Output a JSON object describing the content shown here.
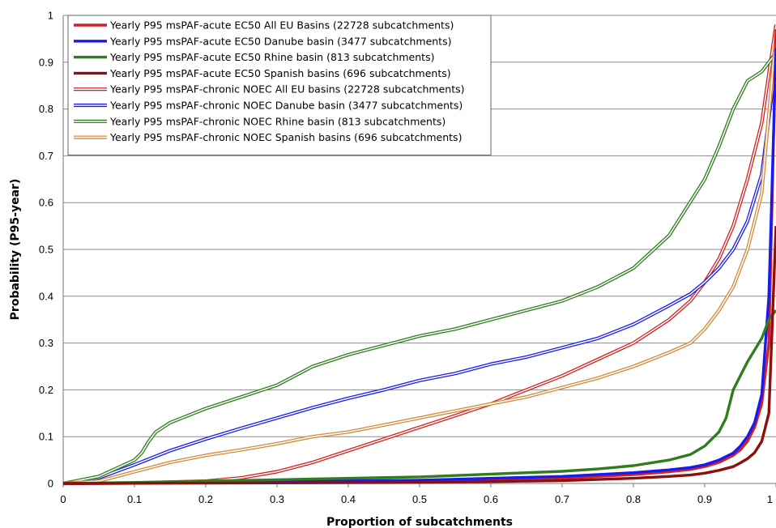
{
  "chart_data": {
    "type": "line",
    "xlabel": "Proportion of subcatchments",
    "ylabel": "Probability (P95-year)",
    "xlim": [
      0,
      1
    ],
    "ylim": [
      0,
      1
    ],
    "x_ticks": [
      "0",
      "0.1",
      "0.2",
      "0.3",
      "0.4",
      "0.5",
      "0.6",
      "0.7",
      "0.8",
      "0.9",
      "1"
    ],
    "y_ticks": [
      "0",
      "0.1",
      "0.2",
      "0.3",
      "0.4",
      "0.5",
      "0.6",
      "0.7",
      "0.8",
      "0.9",
      "1"
    ],
    "grid": "horizontal",
    "legend_position": "top-left",
    "series": [
      {
        "name": "Yearly P95 msPAF-acute EC50 All EU Basins (22728 subcatchments)",
        "color": "#d42020",
        "style": "solid",
        "x": [
          0,
          0.5,
          0.7,
          0.8,
          0.85,
          0.88,
          0.9,
          0.92,
          0.94,
          0.95,
          0.96,
          0.97,
          0.98,
          0.99,
          1.0
        ],
        "y": [
          0,
          0.004,
          0.011,
          0.019,
          0.025,
          0.03,
          0.036,
          0.045,
          0.06,
          0.072,
          0.09,
          0.12,
          0.17,
          0.3,
          0.97
        ]
      },
      {
        "name": "Yearly P95 msPAF-acute EC50 Danube basin (3477 subcatchments)",
        "color": "#1a1aee",
        "style": "solid",
        "x": [
          0,
          0.5,
          0.7,
          0.8,
          0.85,
          0.88,
          0.9,
          0.92,
          0.94,
          0.95,
          0.96,
          0.97,
          0.98,
          0.99,
          1.0
        ],
        "y": [
          0,
          0.007,
          0.015,
          0.023,
          0.029,
          0.034,
          0.04,
          0.05,
          0.065,
          0.08,
          0.1,
          0.13,
          0.19,
          0.4,
          0.93
        ]
      },
      {
        "name": "Yearly P95 msPAF-acute EC50 Rhine basin (813 subcatchments)",
        "color": "#2f7d1e",
        "style": "solid",
        "x": [
          0,
          0.1,
          0.3,
          0.5,
          0.6,
          0.7,
          0.75,
          0.8,
          0.85,
          0.88,
          0.9,
          0.92,
          0.93,
          0.94,
          0.96,
          0.98,
          0.99,
          1.0
        ],
        "y": [
          0,
          0.002,
          0.008,
          0.014,
          0.02,
          0.026,
          0.031,
          0.038,
          0.05,
          0.062,
          0.08,
          0.11,
          0.14,
          0.2,
          0.26,
          0.31,
          0.35,
          0.37
        ]
      },
      {
        "name": "Yearly P95 msPAF-acute EC50 Spanish basins (696 subcatchments)",
        "color": "#8b1010",
        "style": "solid",
        "x": [
          0,
          0.5,
          0.7,
          0.8,
          0.85,
          0.88,
          0.9,
          0.92,
          0.94,
          0.95,
          0.96,
          0.97,
          0.98,
          0.99,
          1.0
        ],
        "y": [
          0,
          0.002,
          0.006,
          0.011,
          0.015,
          0.018,
          0.022,
          0.028,
          0.036,
          0.044,
          0.053,
          0.066,
          0.09,
          0.15,
          0.55
        ]
      },
      {
        "name": "Yearly P95 msPAF-chronic NOEC All EU basins  (22728 subcatchments)",
        "color": "#d42020",
        "style": "double",
        "x": [
          0,
          0.1,
          0.2,
          0.25,
          0.3,
          0.35,
          0.4,
          0.45,
          0.5,
          0.55,
          0.6,
          0.65,
          0.7,
          0.75,
          0.8,
          0.85,
          0.88,
          0.9,
          0.92,
          0.94,
          0.96,
          0.98,
          1.0
        ],
        "y": [
          0,
          0.001,
          0.005,
          0.012,
          0.025,
          0.045,
          0.07,
          0.095,
          0.12,
          0.145,
          0.17,
          0.2,
          0.23,
          0.265,
          0.3,
          0.35,
          0.39,
          0.43,
          0.48,
          0.55,
          0.65,
          0.77,
          0.98
        ]
      },
      {
        "name": "Yearly P95 msPAF-chronic NOEC Danube basin (3477 subcatchments)",
        "color": "#1a1aee",
        "style": "double",
        "x": [
          0,
          0.05,
          0.1,
          0.15,
          0.2,
          0.25,
          0.3,
          0.35,
          0.4,
          0.45,
          0.5,
          0.55,
          0.6,
          0.65,
          0.7,
          0.75,
          0.8,
          0.85,
          0.88,
          0.9,
          0.92,
          0.94,
          0.96,
          0.98,
          1.0
        ],
        "y": [
          0,
          0.012,
          0.04,
          0.07,
          0.095,
          0.118,
          0.14,
          0.162,
          0.182,
          0.2,
          0.22,
          0.235,
          0.255,
          0.27,
          0.29,
          0.31,
          0.34,
          0.38,
          0.405,
          0.43,
          0.46,
          0.5,
          0.56,
          0.66,
          0.9
        ]
      },
      {
        "name": "Yearly P95 msPAF-chronic NOEC Rhine basin (813 subcatchments)",
        "color": "#2f7d1e",
        "style": "double",
        "x": [
          0,
          0.05,
          0.1,
          0.11,
          0.12,
          0.13,
          0.15,
          0.2,
          0.25,
          0.3,
          0.35,
          0.4,
          0.45,
          0.5,
          0.55,
          0.6,
          0.65,
          0.7,
          0.75,
          0.8,
          0.85,
          0.9,
          0.92,
          0.94,
          0.96,
          0.98,
          1.0
        ],
        "y": [
          0,
          0.015,
          0.05,
          0.065,
          0.09,
          0.11,
          0.13,
          0.16,
          0.185,
          0.21,
          0.25,
          0.275,
          0.295,
          0.315,
          0.33,
          0.35,
          0.37,
          0.39,
          0.42,
          0.46,
          0.53,
          0.65,
          0.72,
          0.8,
          0.86,
          0.88,
          0.92
        ]
      },
      {
        "name": "Yearly P95 msPAF-chronic NOEC Spanish basins (696 subcatchments)",
        "color": "#d08a3a",
        "style": "double",
        "x": [
          0,
          0.05,
          0.1,
          0.15,
          0.2,
          0.25,
          0.3,
          0.35,
          0.4,
          0.45,
          0.5,
          0.55,
          0.6,
          0.65,
          0.7,
          0.75,
          0.8,
          0.85,
          0.88,
          0.9,
          0.92,
          0.94,
          0.96,
          0.98,
          1.0
        ],
        "y": [
          0,
          0.005,
          0.025,
          0.045,
          0.06,
          0.072,
          0.085,
          0.1,
          0.11,
          0.125,
          0.14,
          0.155,
          0.17,
          0.185,
          0.205,
          0.225,
          0.25,
          0.28,
          0.3,
          0.33,
          0.37,
          0.42,
          0.5,
          0.62,
          0.96
        ]
      }
    ]
  }
}
